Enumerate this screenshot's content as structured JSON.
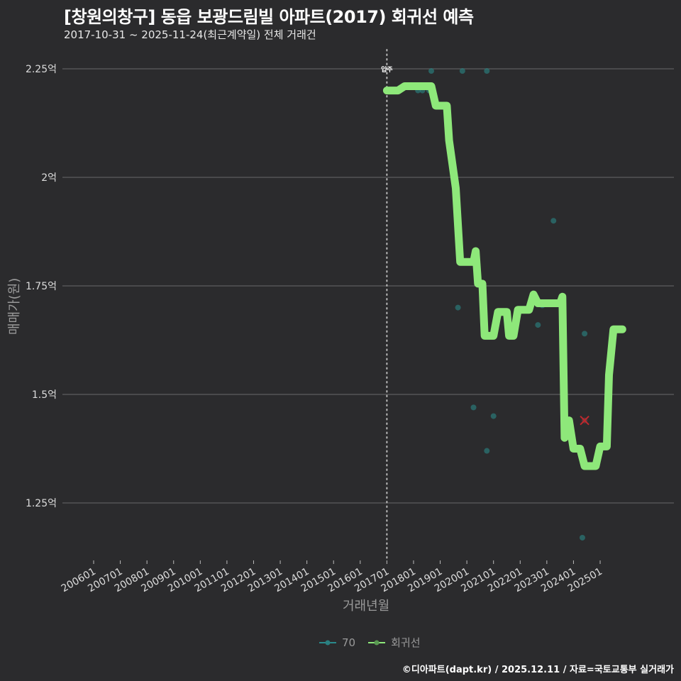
{
  "header": {
    "title": "[창원의창구] 동읍 보광드림빌 아파트(2017) 회귀선 예측",
    "subtitle": "2017-10-31 ~ 2025-11-24(최근계약일) 전체 거래건"
  },
  "axes": {
    "ylabel": "매매가(원)",
    "xlabel": "거래년월",
    "yticks": [
      "2.25억",
      "2억",
      "1.75억",
      "1.5억",
      "1.25억"
    ],
    "xticks": [
      "200601",
      "200701",
      "200801",
      "200901",
      "201001",
      "201101",
      "201201",
      "201301",
      "201401",
      "201501",
      "201601",
      "201701",
      "201801",
      "201901",
      "202001",
      "202101",
      "202201",
      "202301",
      "202401",
      "202501"
    ]
  },
  "annotation": {
    "label": "입주",
    "at": "201701"
  },
  "legend": {
    "items": [
      {
        "label": "70",
        "color": "#2a8a8c"
      },
      {
        "label": "회귀선",
        "color": "#8ee87a"
      }
    ]
  },
  "footer": {
    "credit": "©디아파트(dapt.kr) / 2025.12.11 / 자료=국토교통부 실거래가"
  },
  "colors": {
    "background": "#2b2b2d",
    "regression": "#8ee87a",
    "scatter": "#2a7f80",
    "highlight": "#c0272d",
    "grid": "#6a6a6a"
  },
  "chart_data": {
    "type": "scatter",
    "title": "[창원의창구] 동읍 보광드림빌 아파트(2017) 회귀선 예측",
    "subtitle": "2017-10-31 ~ 2025-11-24(최근계약일) 전체 거래건",
    "xlabel": "거래년월",
    "ylabel": "매매가(원)",
    "ylim": [
      1.12,
      2.29
    ],
    "yunit": "억",
    "grid": true,
    "legend_position": "bottom",
    "vline": {
      "x": "2017-01",
      "label": "입주",
      "style": "dotted"
    },
    "series": [
      {
        "name": "70",
        "type": "scatter",
        "points": [
          {
            "x": "2018-03",
            "y": 2.2
          },
          {
            "x": "2018-05",
            "y": 2.2
          },
          {
            "x": "2018-08",
            "y": 2.2
          },
          {
            "x": "2018-09",
            "y": 2.245
          },
          {
            "x": "2018-09",
            "y": 2.2
          },
          {
            "x": "2019-11",
            "y": 2.245
          },
          {
            "x": "2020-10",
            "y": 2.245
          },
          {
            "x": "2019-09",
            "y": 1.7
          },
          {
            "x": "2020-04",
            "y": 1.47
          },
          {
            "x": "2020-10",
            "y": 1.37
          },
          {
            "x": "2021-01",
            "y": 1.45
          },
          {
            "x": "2022-09",
            "y": 1.66
          },
          {
            "x": "2022-11",
            "y": 1.705
          },
          {
            "x": "2023-04",
            "y": 1.9
          },
          {
            "x": "2024-06",
            "y": 1.64
          },
          {
            "x": "2024-05",
            "y": 1.17
          }
        ]
      },
      {
        "name": "회귀선",
        "type": "line",
        "points": [
          {
            "x": "2017-01",
            "y": 2.2
          },
          {
            "x": "2017-06",
            "y": 2.2
          },
          {
            "x": "2017-09",
            "y": 2.21
          },
          {
            "x": "2018-09",
            "y": 2.21
          },
          {
            "x": "2018-11",
            "y": 2.165
          },
          {
            "x": "2019-04",
            "y": 2.165
          },
          {
            "x": "2019-05",
            "y": 2.085
          },
          {
            "x": "2019-08",
            "y": 1.975
          },
          {
            "x": "2019-10",
            "y": 1.805
          },
          {
            "x": "2020-04",
            "y": 1.805
          },
          {
            "x": "2020-05",
            "y": 1.83
          },
          {
            "x": "2020-06",
            "y": 1.755
          },
          {
            "x": "2020-08",
            "y": 1.755
          },
          {
            "x": "2020-09",
            "y": 1.635
          },
          {
            "x": "2021-01",
            "y": 1.635
          },
          {
            "x": "2021-03",
            "y": 1.69
          },
          {
            "x": "2021-07",
            "y": 1.69
          },
          {
            "x": "2021-08",
            "y": 1.635
          },
          {
            "x": "2021-10",
            "y": 1.635
          },
          {
            "x": "2021-12",
            "y": 1.695
          },
          {
            "x": "2022-05",
            "y": 1.695
          },
          {
            "x": "2022-07",
            "y": 1.73
          },
          {
            "x": "2022-09",
            "y": 1.71
          },
          {
            "x": "2023-07",
            "y": 1.71
          },
          {
            "x": "2023-08",
            "y": 1.725
          },
          {
            "x": "2023-09",
            "y": 1.4
          },
          {
            "x": "2023-11",
            "y": 1.44
          },
          {
            "x": "2024-01",
            "y": 1.375
          },
          {
            "x": "2024-04",
            "y": 1.375
          },
          {
            "x": "2024-06",
            "y": 1.335
          },
          {
            "x": "2024-11",
            "y": 1.335
          },
          {
            "x": "2025-01",
            "y": 1.38
          },
          {
            "x": "2025-04",
            "y": 1.38
          },
          {
            "x": "2025-05",
            "y": 1.545
          },
          {
            "x": "2025-07",
            "y": 1.65
          },
          {
            "x": "2025-11",
            "y": 1.65
          }
        ]
      },
      {
        "name": "highlight",
        "type": "marker-x",
        "points": [
          {
            "x": "2024-06",
            "y": 1.44
          }
        ]
      }
    ]
  }
}
